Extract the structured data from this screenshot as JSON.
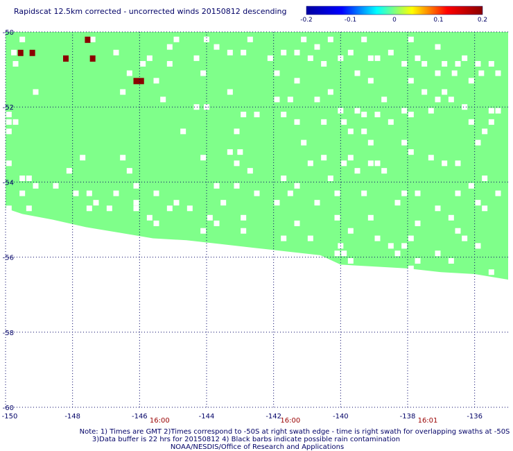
{
  "chart_data": {
    "type": "heatmap",
    "title": "Rapidscat 12.5km corrected - uncorrected winds 20150812 descending",
    "xlim": [
      -150,
      -135
    ],
    "ylim": [
      -60,
      -50
    ],
    "x_ticks": [
      "-150",
      "-148",
      "-146",
      "-144",
      "-142",
      "-140",
      "-138",
      "-136"
    ],
    "y_ticks": [
      "-50",
      "-52",
      "-54",
      "-56",
      "-58",
      "-60"
    ],
    "x_tick_values": [
      -150,
      -148,
      -146,
      -144,
      -142,
      -140,
      -138,
      -136
    ],
    "y_tick_values": [
      -50,
      -52,
      -54,
      -56,
      -58,
      -60
    ],
    "grid": true,
    "colorbar": {
      "range": [
        -0.2,
        0.2
      ],
      "labels": [
        "-0.2",
        "-0.1",
        "0",
        "0.1",
        "0.2"
      ],
      "label_values": [
        -0.2,
        -0.1,
        0,
        0.1,
        0.2
      ],
      "colors": [
        "#0000a0",
        "#0000ff",
        "#00ffff",
        "#ffff00",
        "#ff0000",
        "#8b0000"
      ]
    },
    "swath": {
      "value": 0,
      "color": "#7fff8a",
      "lower_edge": [
        {
          "lon": -150.0,
          "lat": -54.7
        },
        {
          "lon": -149.5,
          "lat": -54.85
        },
        {
          "lon": -148.6,
          "lat": -55.0
        },
        {
          "lon": -147.6,
          "lat": -55.2
        },
        {
          "lon": -146.6,
          "lat": -55.35
        },
        {
          "lon": -145.6,
          "lat": -55.5
        },
        {
          "lon": -144.6,
          "lat": -55.55
        },
        {
          "lon": -143.6,
          "lat": -55.65
        },
        {
          "lon": -142.6,
          "lat": -55.75
        },
        {
          "lon": -141.6,
          "lat": -55.85
        },
        {
          "lon": -140.6,
          "lat": -55.95
        },
        {
          "lon": -140.0,
          "lat": -56.2
        },
        {
          "lon": -139.0,
          "lat": -56.25
        },
        {
          "lon": -138.0,
          "lat": -56.3
        },
        {
          "lon": -137.0,
          "lat": -56.4
        },
        {
          "lon": -136.0,
          "lat": -56.45
        },
        {
          "lon": -135.0,
          "lat": -56.6
        }
      ]
    },
    "positive_cells": [
      {
        "lon": -147.55,
        "lat": -50.2,
        "value": 0.2
      },
      {
        "lon": -149.55,
        "lat": -50.55,
        "value": 0.2
      },
      {
        "lon": -149.2,
        "lat": -50.55,
        "value": 0.2
      },
      {
        "lon": -148.2,
        "lat": -50.7,
        "value": 0.2
      },
      {
        "lon": -147.4,
        "lat": -50.7,
        "value": 0.2
      },
      {
        "lon": -146.1,
        "lat": -51.3,
        "value": 0.2
      },
      {
        "lon": -145.95,
        "lat": -51.3,
        "value": 0.2
      }
    ],
    "gap_cells": [
      [
        -149.5,
        -50.2
      ],
      [
        -147.4,
        -50.2
      ],
      [
        -144.9,
        -50.2
      ],
      [
        -144.0,
        -50.2
      ],
      [
        -142.7,
        -50.2
      ],
      [
        -141.1,
        -50.2
      ],
      [
        -140.3,
        -50.2
      ],
      [
        -139.3,
        -50.2
      ],
      [
        -137.9,
        -50.2
      ],
      [
        -145.1,
        -50.4
      ],
      [
        -143.7,
        -50.4
      ],
      [
        -140.7,
        -50.4
      ],
      [
        -137.1,
        -50.4
      ],
      [
        -149.75,
        -50.55
      ],
      [
        -146.7,
        -50.55
      ],
      [
        -143.3,
        -50.55
      ],
      [
        -142.9,
        -50.55
      ],
      [
        -141.7,
        -50.55
      ],
      [
        -141.3,
        -50.55
      ],
      [
        -139.7,
        -50.55
      ],
      [
        -138.5,
        -50.55
      ],
      [
        -145.7,
        -50.7
      ],
      [
        -144.3,
        -50.7
      ],
      [
        -142.1,
        -50.7
      ],
      [
        -140.9,
        -50.7
      ],
      [
        -140.0,
        -50.7
      ],
      [
        -139.1,
        -50.7
      ],
      [
        -138.9,
        -50.7
      ],
      [
        -137.7,
        -50.7
      ],
      [
        -136.3,
        -50.7
      ],
      [
        -149.7,
        -50.85
      ],
      [
        -145.9,
        -50.85
      ],
      [
        -145.1,
        -50.85
      ],
      [
        -140.5,
        -50.85
      ],
      [
        -138.1,
        -50.85
      ],
      [
        -137.5,
        -50.85
      ],
      [
        -136.9,
        -50.85
      ],
      [
        -136.5,
        -50.85
      ],
      [
        -135.9,
        -50.85
      ],
      [
        -135.5,
        -50.85
      ],
      [
        -146.3,
        -51.1
      ],
      [
        -144.1,
        -51.1
      ],
      [
        -141.9,
        -51.1
      ],
      [
        -139.5,
        -51.1
      ],
      [
        -137.1,
        -51.1
      ],
      [
        -136.6,
        -51.1
      ],
      [
        -135.8,
        -51.1
      ],
      [
        -135.3,
        -51.1
      ],
      [
        -145.5,
        -51.3
      ],
      [
        -141.3,
        -51.3
      ],
      [
        -139.1,
        -51.3
      ],
      [
        -137.9,
        -51.3
      ],
      [
        -136.1,
        -51.3
      ],
      [
        -149.1,
        -51.6
      ],
      [
        -146.5,
        -51.6
      ],
      [
        -143.3,
        -51.6
      ],
      [
        -140.3,
        -51.6
      ],
      [
        -137.5,
        -51.6
      ],
      [
        -136.9,
        -51.6
      ],
      [
        -145.3,
        -51.8
      ],
      [
        -141.9,
        -51.8
      ],
      [
        -141.5,
        -51.8
      ],
      [
        -140.7,
        -51.8
      ],
      [
        -138.7,
        -51.8
      ],
      [
        -137.1,
        -51.8
      ],
      [
        -136.7,
        -51.8
      ],
      [
        -144.3,
        -52.0
      ],
      [
        -144.0,
        -52.0
      ],
      [
        -136.3,
        -52.0
      ],
      [
        -140.0,
        -52.1
      ],
      [
        -139.5,
        -52.1
      ],
      [
        -138.1,
        -52.1
      ],
      [
        -137.3,
        -52.1
      ],
      [
        -135.5,
        -52.1
      ],
      [
        -135.3,
        -52.1
      ],
      [
        -149.9,
        -52.2
      ],
      [
        -142.9,
        -52.2
      ],
      [
        -142.5,
        -52.2
      ],
      [
        -141.7,
        -52.2
      ],
      [
        -139.3,
        -52.2
      ],
      [
        -138.9,
        -52.2
      ],
      [
        -137.9,
        -52.2
      ],
      [
        -149.9,
        -52.4
      ],
      [
        -149.7,
        -52.4
      ],
      [
        -141.3,
        -52.4
      ],
      [
        -140.5,
        -52.4
      ],
      [
        -139.9,
        -52.4
      ],
      [
        -138.5,
        -52.4
      ],
      [
        -136.1,
        -52.4
      ],
      [
        -135.5,
        -52.4
      ],
      [
        -149.9,
        -52.65
      ],
      [
        -144.7,
        -52.65
      ],
      [
        -143.1,
        -52.65
      ],
      [
        -139.7,
        -52.65
      ],
      [
        -139.3,
        -52.65
      ],
      [
        -135.7,
        -52.65
      ],
      [
        -141.1,
        -52.95
      ],
      [
        -139.1,
        -52.95
      ],
      [
        -138.1,
        -52.95
      ],
      [
        -135.9,
        -52.95
      ],
      [
        -143.3,
        -53.2
      ],
      [
        -143.0,
        -53.2
      ],
      [
        -137.9,
        -53.2
      ],
      [
        -147.7,
        -53.35
      ],
      [
        -146.5,
        -53.35
      ],
      [
        -144.1,
        -53.35
      ],
      [
        -140.5,
        -53.35
      ],
      [
        -139.7,
        -53.35
      ],
      [
        -137.3,
        -53.35
      ],
      [
        -149.9,
        -53.5
      ],
      [
        -143.1,
        -53.5
      ],
      [
        -140.9,
        -53.5
      ],
      [
        -139.9,
        -53.5
      ],
      [
        -139.1,
        -53.5
      ],
      [
        -138.9,
        -53.5
      ],
      [
        -136.9,
        -53.5
      ],
      [
        -136.5,
        -53.5
      ],
      [
        -148.1,
        -53.7
      ],
      [
        -146.3,
        -53.7
      ],
      [
        -142.7,
        -53.7
      ],
      [
        -139.5,
        -53.7
      ],
      [
        -138.7,
        -53.7
      ],
      [
        -149.5,
        -53.9
      ],
      [
        -149.3,
        -53.9
      ],
      [
        -141.7,
        -53.9
      ],
      [
        -140.3,
        -53.9
      ],
      [
        -135.7,
        -53.9
      ],
      [
        -149.1,
        -54.1
      ],
      [
        -148.5,
        -54.1
      ],
      [
        -146.1,
        -54.1
      ],
      [
        -143.7,
        -54.1
      ],
      [
        -143.1,
        -54.1
      ],
      [
        -141.3,
        -54.1
      ],
      [
        -136.1,
        -54.1
      ],
      [
        -149.5,
        -54.3
      ],
      [
        -147.9,
        -54.3
      ],
      [
        -147.5,
        -54.3
      ],
      [
        -146.7,
        -54.3
      ],
      [
        -145.5,
        -54.3
      ],
      [
        -142.5,
        -54.3
      ],
      [
        -141.5,
        -54.3
      ],
      [
        -140.1,
        -54.3
      ],
      [
        -139.3,
        -54.3
      ],
      [
        -138.1,
        -54.3
      ],
      [
        -137.7,
        -54.3
      ],
      [
        -136.5,
        -54.3
      ],
      [
        -135.3,
        -54.3
      ],
      [
        -147.3,
        -54.55
      ],
      [
        -146.1,
        -54.55
      ],
      [
        -144.9,
        -54.55
      ],
      [
        -143.5,
        -54.55
      ],
      [
        -141.9,
        -54.55
      ],
      [
        -140.7,
        -54.55
      ],
      [
        -138.3,
        -54.55
      ],
      [
        -135.9,
        -54.55
      ],
      [
        -149.9,
        -54.7
      ],
      [
        -149.3,
        -54.7
      ],
      [
        -147.5,
        -54.7
      ],
      [
        -146.9,
        -54.7
      ],
      [
        -146.1,
        -54.7
      ],
      [
        -145.1,
        -54.7
      ],
      [
        -144.5,
        -54.7
      ],
      [
        -137.1,
        -54.7
      ],
      [
        -135.7,
        -54.7
      ],
      [
        -145.7,
        -54.95
      ],
      [
        -143.9,
        -54.95
      ],
      [
        -142.9,
        -54.95
      ],
      [
        -140.1,
        -54.95
      ],
      [
        -139.1,
        -54.95
      ],
      [
        -136.7,
        -54.95
      ],
      [
        -145.5,
        -55.1
      ],
      [
        -143.7,
        -55.1
      ],
      [
        -141.3,
        -55.1
      ],
      [
        -137.7,
        -55.1
      ],
      [
        -144.1,
        -55.3
      ],
      [
        -142.9,
        -55.3
      ],
      [
        -139.7,
        -55.3
      ],
      [
        -136.5,
        -55.3
      ],
      [
        -141.7,
        -55.5
      ],
      [
        -140.9,
        -55.5
      ],
      [
        -138.9,
        -55.5
      ],
      [
        -137.9,
        -55.5
      ],
      [
        -136.3,
        -55.5
      ],
      [
        -140.0,
        -55.7
      ],
      [
        -138.5,
        -55.7
      ],
      [
        -138.1,
        -55.7
      ],
      [
        -135.9,
        -55.7
      ],
      [
        -140.1,
        -55.9
      ],
      [
        -139.9,
        -55.9
      ],
      [
        -138.3,
        -55.9
      ],
      [
        -137.1,
        -55.9
      ],
      [
        -139.7,
        -56.1
      ],
      [
        -137.7,
        -56.1
      ],
      [
        -136.7,
        -56.1
      ],
      [
        -137.9,
        -56.3
      ],
      [
        -135.5,
        -56.4
      ]
    ]
  },
  "time_labels": [
    {
      "text": "16:00",
      "lon": -145.4
    },
    {
      "text": "16:00",
      "lon": -141.5
    },
    {
      "text": "16:01",
      "lon": -137.4
    }
  ],
  "note_lines": [
    "Note: 1) Times are GMT 2)Times correspond to -50S at right swath edge - time is right swath for overlapping swaths at -50S",
    "3)Data buffer is 22 hrs for 20150812 4) Black barbs indicate possible rain contamination",
    "NOAA/NESDIS/Office of Research and Applications"
  ]
}
